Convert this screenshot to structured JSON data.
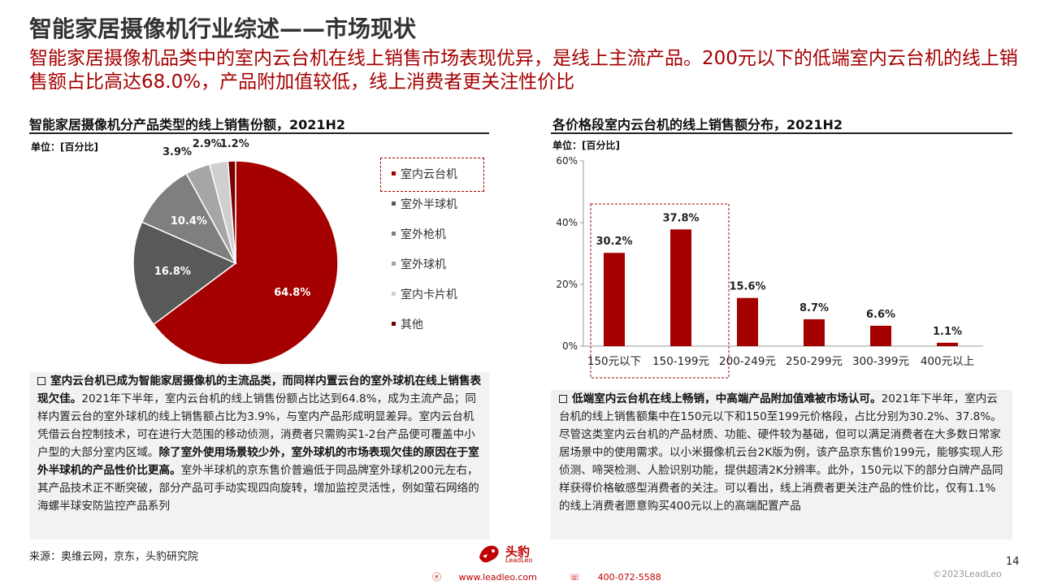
{
  "header": {
    "title": "智能家居摄像机行业综述——市场现状",
    "subtitle": "智能家居摄像机品类中的室内云台机在线上销售市场表现优异，是线上主流产品。200元以下的低端室内云台机的线上销售额占比高达68.0%，产品附加值较低，线上消费者更关注性价比"
  },
  "left_chart": {
    "section_title": "智能家居摄像机分产品类型的线上销售份额，2021H2",
    "unit": "单位：[百分比]"
  },
  "right_chart": {
    "section_title": "各价格段室内云台机的线上销售额分布，2021H2",
    "unit": "单位：[百分比]"
  },
  "chart_data": [
    {
      "type": "pie",
      "title": "智能家居摄像机分产品类型的线上销售份额，2021H2",
      "categories": [
        "室内云台机",
        "室外半球机",
        "室外枪机",
        "室外球机",
        "室内卡片机",
        "其他"
      ],
      "values": [
        64.8,
        16.8,
        10.4,
        3.9,
        2.9,
        1.2
      ],
      "labels": [
        "64.8%",
        "16.8%",
        "10.4%",
        "3.9%",
        "2.9%",
        "1.2%"
      ],
      "colors": [
        "#a50000",
        "#595959",
        "#7f7f7f",
        "#a6a6a6",
        "#cfcfcf",
        "#7a0000"
      ],
      "legend": "right"
    },
    {
      "type": "bar",
      "title": "各价格段室内云台机的线上销售额分布，2021H2",
      "categories": [
        "150元以下",
        "150-199元",
        "200-249元",
        "250-299元",
        "300-399元",
        "400元以上"
      ],
      "values": [
        30.2,
        37.8,
        15.6,
        8.7,
        6.6,
        1.1
      ],
      "labels": [
        "30.2%",
        "37.8%",
        "15.6%",
        "8.7%",
        "6.6%",
        "1.1%"
      ],
      "yticks": [
        "0%",
        "20%",
        "40%",
        "60%"
      ],
      "ylim": [
        0,
        60
      ],
      "color": "#a50000",
      "grid": false
    }
  ],
  "left_text": {
    "bold1": "室内云台机已成为智能家居摄像机的主流品类，而同样内置云台的室外球机在线上销售表现欠佳。",
    "normal1": "2021年下半年，室内云台机的线上销售份额占比达到64.8%，成为主流产品；同样内置云台的室外球机的线上销售额占比为3.9%，与室内产品形成明显差异。室内云台机凭借云台控制技术，可在进行大范围的移动侦测，消费者只需购买1-2台产品便可覆盖中小户型的大部分室内区域。",
    "bold2": "除了室外使用场景较少外，室外球机的市场表现欠佳的原因在于室外半球机的产品性价比更高。",
    "normal2": "室外半球机的京东售价普遍低于同品牌室外球机200元左右，其产品技术正不断突破，部分产品可手动实现四向旋转，增加监控灵活性，例如萤石网络的海螺半球安防监控产品系列"
  },
  "right_text": {
    "bold1": "低端室内云台机在线上畅销，中高端产品附加值难被市场认可。",
    "normal1": "2021年下半年，室内云台机的线上销售额集中在150元以下和150至199元价格段，占比分别为30.2%、37.8%。尽管这类室内云台机的产品材质、功能、硬件较为基础，但可以满足消费者在大多数日常家居场景中的使用需求。以小米摄像机云台2K版为例，该产品京东售价199元，能够实现人形侦测、啼哭检测、人脸识别功能，提供超清2K分辨率。此外，150元以下的部分白牌产品同样获得价格敏感型消费者的关注。可以看出，线上消费者更关注产品的性价比，仅有1.1%的线上消费者愿意购买400元以上的高端配置产品"
  },
  "footer": {
    "source": "来源：奥维云网，京东，头豹研究院",
    "logo_text": "头豹",
    "logo_sub": "LeadLeo",
    "website": "www.leadleo.com",
    "phone": "400-072-5588",
    "page": "14",
    "copyright": "©2023LeadLeo"
  }
}
